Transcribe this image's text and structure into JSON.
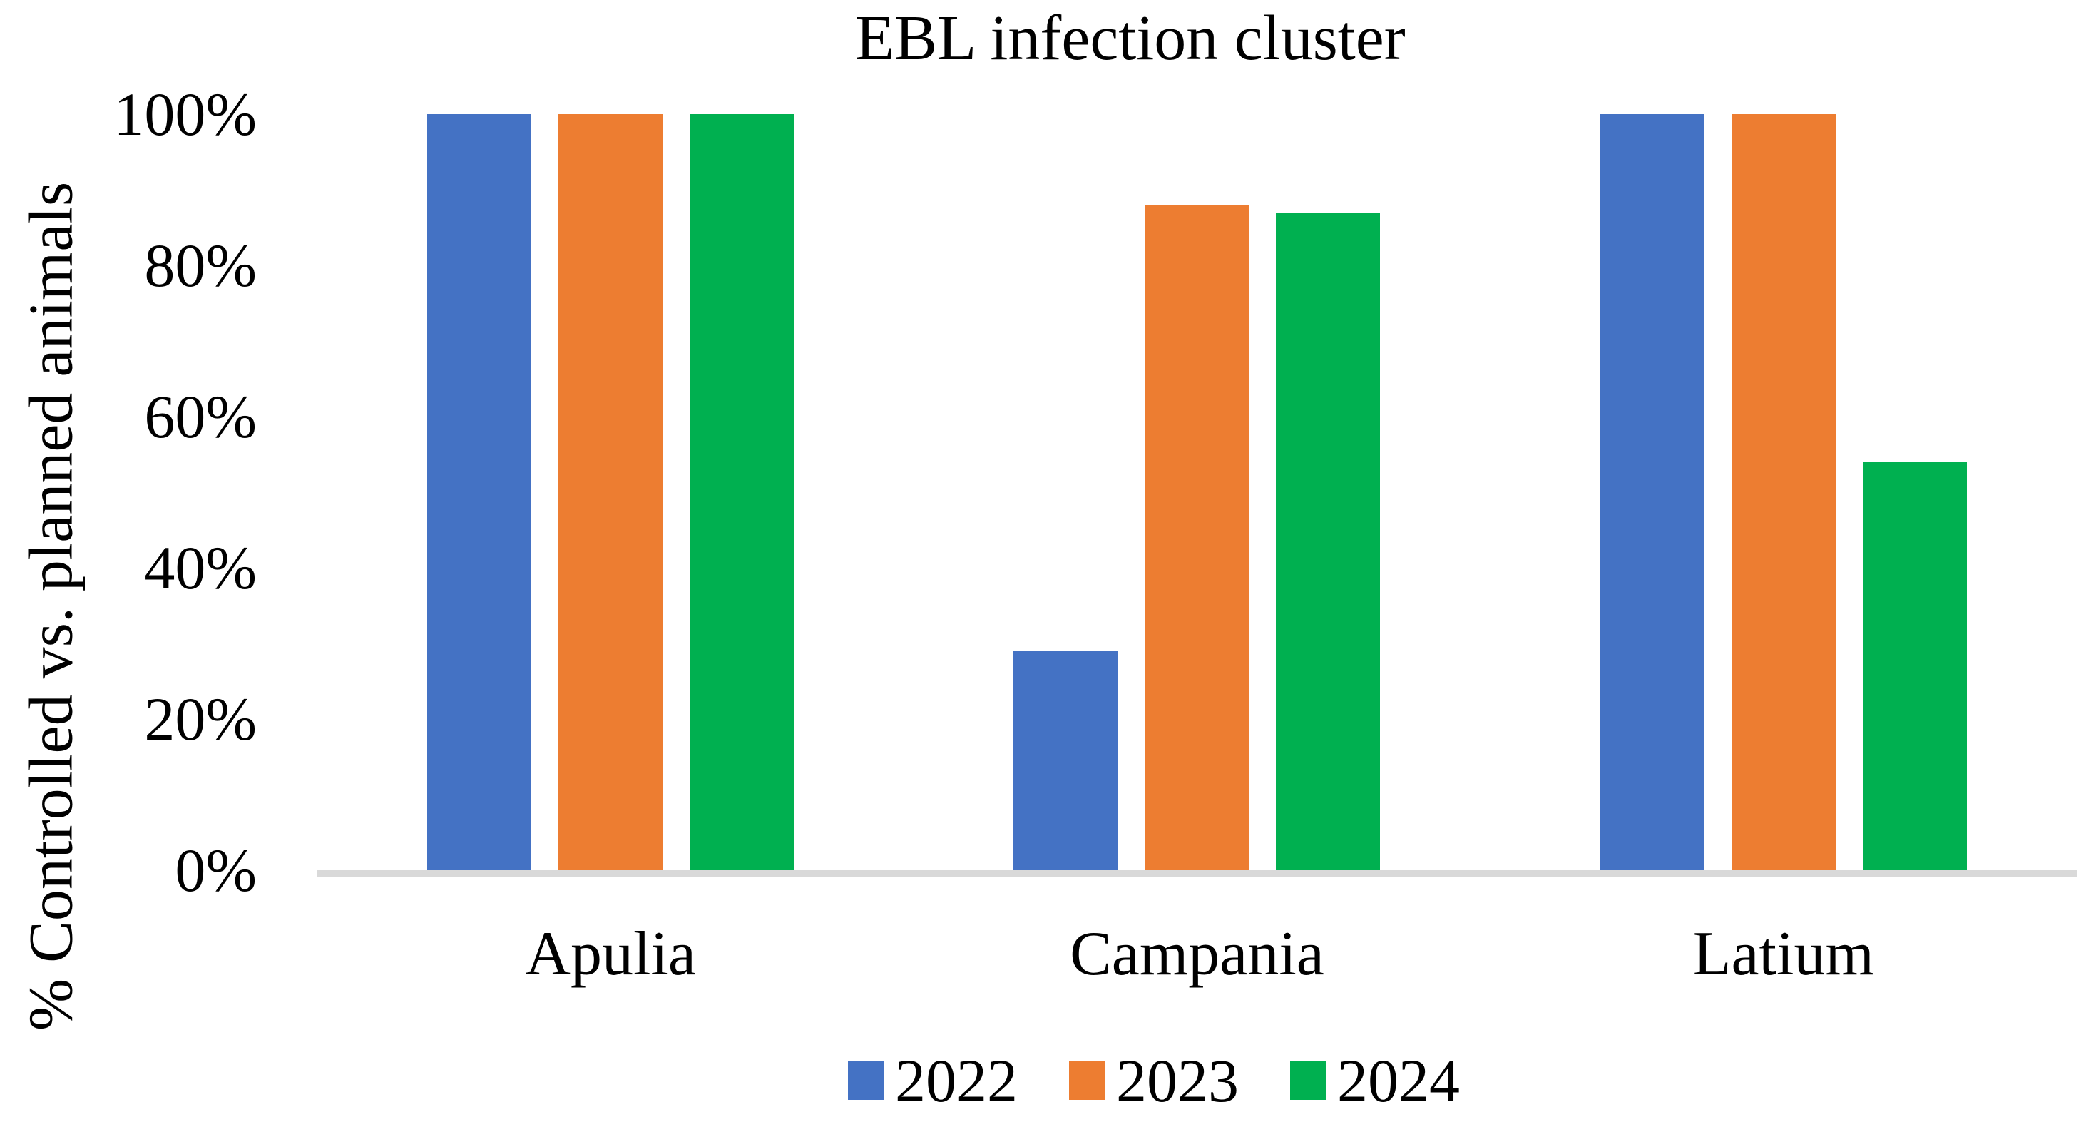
{
  "chart": {
    "title": "EBL infection cluster",
    "y_axis_title": "% Controlled vs. planned animals"
  },
  "chart_data": {
    "type": "bar",
    "title": "EBL infection cluster",
    "ylabel": "% Controlled vs. planned animals",
    "xlabel": "",
    "categories": [
      "Apulia",
      "Campania",
      "Latium"
    ],
    "series": [
      {
        "name": "2022",
        "color": "#4472C4",
        "values": [
          100,
          29,
          100
        ]
      },
      {
        "name": "2023",
        "color": "#ED7D31",
        "values": [
          100,
          88,
          100
        ]
      },
      {
        "name": "2024",
        "color": "#00B050",
        "values": [
          100,
          87,
          54
        ]
      }
    ],
    "ylim": [
      0,
      100
    ],
    "ytick_labels": [
      "0%",
      "20%",
      "40%",
      "60%",
      "80%",
      "100%"
    ],
    "grid": false,
    "legend_position": "bottom",
    "colors": {
      "axis_line": "#D9D9D9",
      "text": "#000000",
      "background": "#FFFFFF"
    }
  }
}
